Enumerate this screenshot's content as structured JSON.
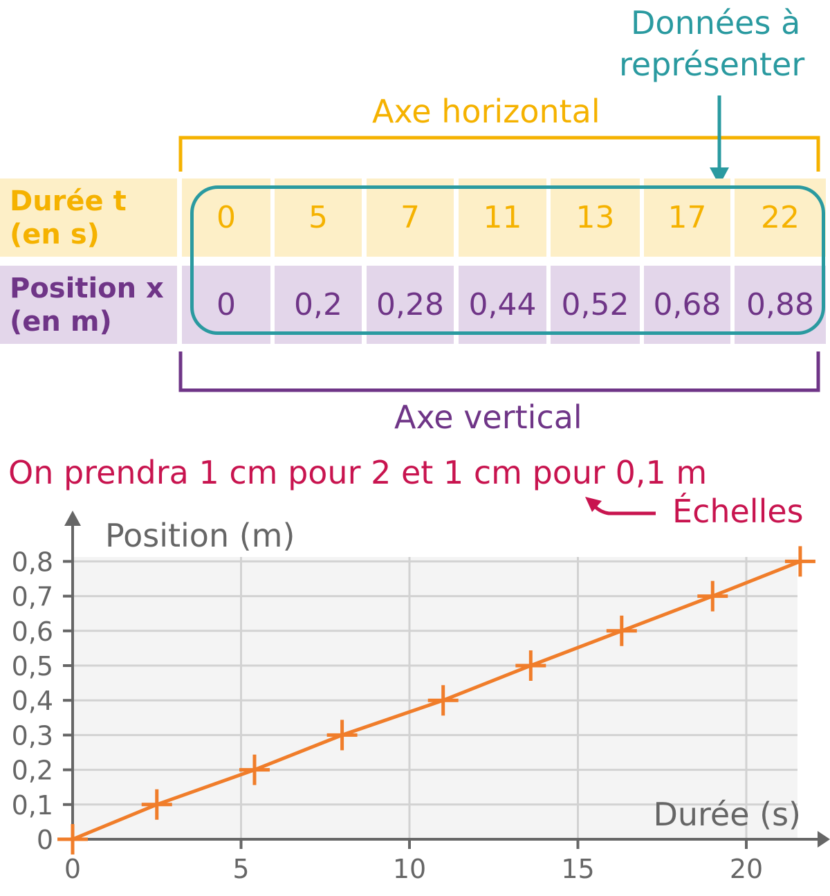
{
  "annotations": {
    "data_label_line1": "Données à",
    "data_label_line2": "représenter",
    "horizontal_axis": "Axe horizontal",
    "vertical_axis": "Axe vertical",
    "scale_instruction": "On prendra 1 cm pour 2 et 1 cm pour 0,1 m",
    "scales": "Échelles"
  },
  "table": {
    "time_header_line1": "Durée t",
    "time_header_line2": "(en s)",
    "position_header_line1": "Position x",
    "position_header_line2": "(en m)",
    "times": [
      "0",
      "5",
      "7",
      "11",
      "13",
      "17",
      "22"
    ],
    "positions": [
      "0",
      "0,2",
      "0,28",
      "0,44",
      "0,52",
      "0,68",
      "0,88"
    ]
  },
  "colors": {
    "time_row": "#f5b200",
    "position_row": "#6f3587",
    "highlight": "#2a9aa0",
    "scale_text": "#c8144f",
    "series": "#f07d2a"
  },
  "chart_data": {
    "type": "line",
    "xlabel": "Durée (s)",
    "ylabel": "Position (m)",
    "xlim": [
      0,
      22
    ],
    "ylim": [
      0,
      0.8
    ],
    "x_ticks": [
      0,
      5,
      10,
      15,
      20
    ],
    "x_tick_labels": [
      "0",
      "5",
      "10",
      "15",
      "20"
    ],
    "y_ticks": [
      0,
      0.1,
      0.2,
      0.3,
      0.4,
      0.5,
      0.6,
      0.7,
      0.8
    ],
    "y_tick_labels": [
      "0",
      "0,1",
      "0,2",
      "0,3",
      "0,4",
      "0,5",
      "0,6",
      "0,7",
      "0,8"
    ],
    "grid": true,
    "series": [
      {
        "x": [
          0,
          2.5,
          5.4,
          8.0,
          11.0,
          13.6,
          16.3,
          19.0,
          21.6
        ],
        "y": [
          0,
          0.1,
          0.2,
          0.3,
          0.4,
          0.5,
          0.6,
          0.7,
          0.8
        ]
      }
    ]
  }
}
